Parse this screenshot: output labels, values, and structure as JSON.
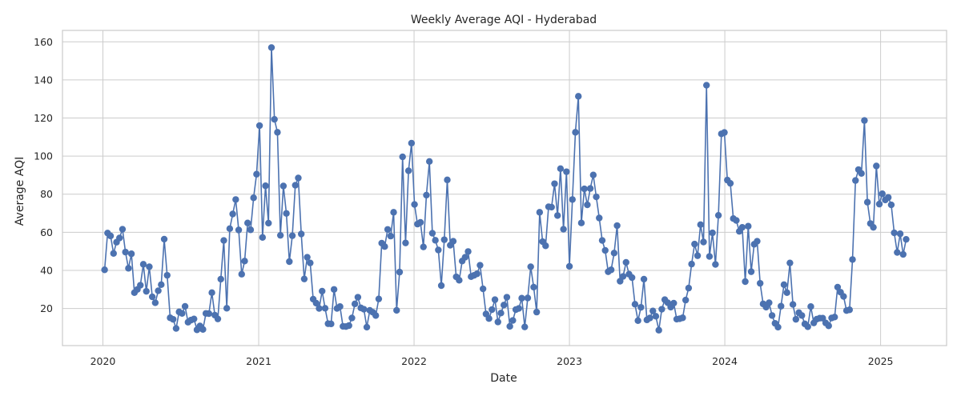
{
  "chart_data": {
    "type": "line",
    "title": "Weekly Average AQI - Hyderabad",
    "xlabel": "Date",
    "ylabel": "Average AQI",
    "x_range": [
      "2019-09-28",
      "2025-06-05"
    ],
    "ylim": [
      0.5,
      166
    ],
    "x_ticks": [
      {
        "label": "2020",
        "date": "2020-01-01"
      },
      {
        "label": "2021",
        "date": "2021-01-01"
      },
      {
        "label": "2022",
        "date": "2022-01-01"
      },
      {
        "label": "2023",
        "date": "2023-01-01"
      },
      {
        "label": "2024",
        "date": "2024-01-01"
      },
      {
        "label": "2025",
        "date": "2025-01-01"
      }
    ],
    "y_ticks": [
      20,
      40,
      60,
      80,
      100,
      120,
      140,
      160
    ],
    "grid": true,
    "legend": "none",
    "series": [
      {
        "color": "#4c72b0",
        "marker": "circle",
        "start_date": "2020-01-05",
        "interval_days": 7,
        "values": [
          40.3,
          59.6,
          58.1,
          48.9,
          54.8,
          57.0,
          61.6,
          49.6,
          41.1,
          48.7,
          28.3,
          30.0,
          32.2,
          43.2,
          29.0,
          41.9,
          26.1,
          23.0,
          29.3,
          32.5,
          56.4,
          37.4,
          15.1,
          14.3,
          9.5,
          18.2,
          17.4,
          21.1,
          12.8,
          13.9,
          14.5,
          8.8,
          10.8,
          9.0,
          17.4,
          17.3,
          28.3,
          16.5,
          14.5,
          35.4,
          55.7,
          20.1,
          61.9,
          69.6,
          77.2,
          61.2,
          38.0,
          44.9,
          64.9,
          61.3,
          78.1,
          90.5,
          116.0,
          57.3,
          84.4,
          64.8,
          157.0,
          119.3,
          112.5,
          58.4,
          84.3,
          69.9,
          44.6,
          58.2,
          84.7,
          88.5,
          59.1,
          35.5,
          46.9,
          43.9,
          24.9,
          22.8,
          20.0,
          29.1,
          20.1,
          12.0,
          11.9,
          30.0,
          20.0,
          21.0,
          10.6,
          10.5,
          11.0,
          15.0,
          22.4,
          25.9,
          20.3,
          19.6,
          10.2,
          19.0,
          18.0,
          16.3,
          25.0,
          54.3,
          52.5,
          61.5,
          58.0,
          70.5,
          19.0,
          39.1,
          99.6,
          54.4,
          92.3,
          106.8,
          74.6,
          64.3,
          65.2,
          52.3,
          79.5,
          97.2,
          59.5,
          55.8,
          50.7,
          32.0,
          56.1,
          87.5,
          53.2,
          55.3,
          36.6,
          34.8,
          44.9,
          46.9,
          49.9,
          36.7,
          37.4,
          38.2,
          42.7,
          30.3,
          17.1,
          14.7,
          19.4,
          24.6,
          12.9,
          17.6,
          21.8,
          25.9,
          10.6,
          13.7,
          19.4,
          20.0,
          25.4,
          10.3,
          25.5,
          41.9,
          31.2,
          18.1,
          70.5,
          55.1,
          52.9,
          73.4,
          73.2,
          85.5,
          68.8,
          93.4,
          61.6,
          91.8,
          42.1,
          77.2,
          112.5,
          131.4,
          64.9,
          82.8,
          74.4,
          83.0,
          90.1,
          78.6,
          67.5,
          55.7,
          50.5,
          39.3,
          40.3,
          49.1,
          63.5,
          34.3,
          36.8,
          44.2,
          38.0,
          36.2,
          22.2,
          13.6,
          20.6,
          35.4,
          14.0,
          15.0,
          18.7,
          15.9,
          8.6,
          19.6,
          24.6,
          23.0,
          20.7,
          22.8,
          14.4,
          14.6,
          15.1,
          24.4,
          30.7,
          43.3,
          53.8,
          47.7,
          64.0,
          54.9,
          137.2,
          47.3,
          59.7,
          43.1,
          68.9,
          111.7,
          112.4,
          87.4,
          85.7,
          67.2,
          66.2,
          60.5,
          62.6,
          34.1,
          63.2,
          39.3,
          53.7,
          55.3,
          33.2,
          22.4,
          20.7,
          23.0,
          16.3,
          12.2,
          10.2,
          21.2,
          32.5,
          28.3,
          43.9,
          22.1,
          14.3,
          17.8,
          16.3,
          11.9,
          10.4,
          21.0,
          12.4,
          14.4,
          14.9,
          14.9,
          12.4,
          10.9,
          15.0,
          15.5,
          31.2,
          28.5,
          26.3,
          18.9,
          19.3,
          45.7,
          87.2,
          92.9,
          90.9,
          118.7,
          75.8,
          64.6,
          62.6,
          94.8,
          74.8,
          80.2,
          77.0,
          78.3,
          74.4,
          59.7,
          49.4,
          59.2,
          48.4,
          56.3
        ]
      }
    ]
  }
}
